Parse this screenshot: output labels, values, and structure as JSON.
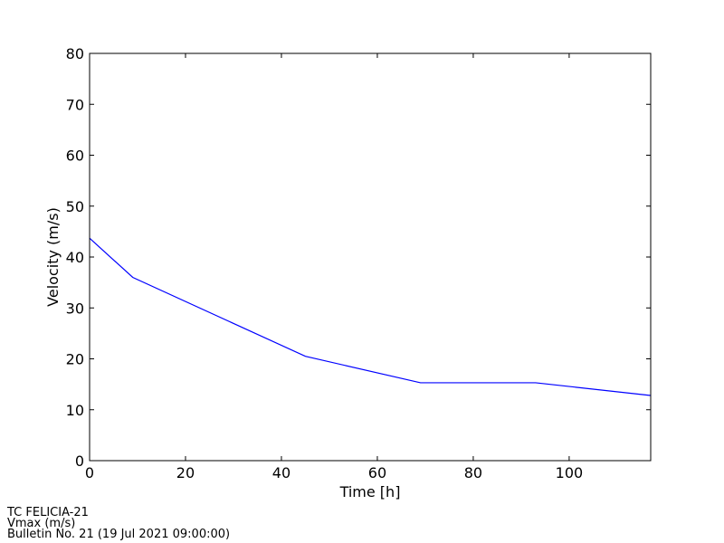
{
  "chart_data": {
    "type": "line",
    "xlabel": "Time [h]",
    "ylabel": "Velocity (m/s)",
    "x": [
      0,
      9,
      45,
      69,
      93,
      117
    ],
    "series": [
      {
        "name": "Vmax",
        "color": "#0000ff",
        "values": [
          43.7,
          36,
          20.5,
          15.3,
          15.3,
          12.8
        ]
      }
    ],
    "xlim": [
      0,
      117
    ],
    "xticks": [
      0,
      20,
      40,
      60,
      80,
      100
    ],
    "ylim": [
      0,
      80
    ],
    "yticks": [
      0,
      10,
      20,
      30,
      40,
      50,
      60,
      70,
      80
    ],
    "grid": false,
    "notes": [
      "TC FELICIA-21",
      "Vmax (m/s)",
      "Bulletin No. 21 (19 Jul 2021  09:00:00)"
    ]
  }
}
